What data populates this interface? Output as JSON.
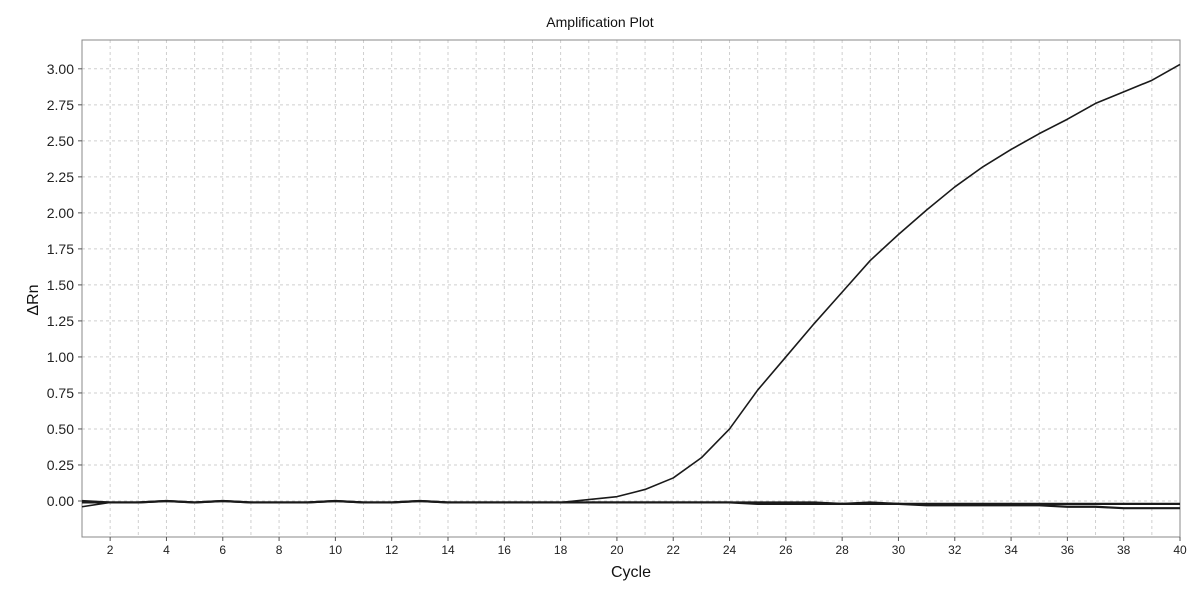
{
  "chart_data": {
    "type": "line",
    "title": "Amplification Plot",
    "xlabel": "Cycle",
    "ylabel": "ΔRn",
    "xlim": [
      1,
      40
    ],
    "ylim": [
      -0.25,
      3.2
    ],
    "x_ticks": [
      2,
      4,
      6,
      8,
      10,
      12,
      14,
      16,
      18,
      20,
      22,
      24,
      26,
      28,
      30,
      32,
      34,
      36,
      38,
      40
    ],
    "y_ticks": [
      "0.00",
      "0.25",
      "0.50",
      "0.75",
      "1.00",
      "1.25",
      "1.50",
      "1.75",
      "2.00",
      "2.25",
      "2.50",
      "2.75",
      "3.00"
    ],
    "grid": true,
    "x": [
      1,
      2,
      3,
      4,
      5,
      6,
      7,
      8,
      9,
      10,
      11,
      12,
      13,
      14,
      15,
      16,
      17,
      18,
      19,
      20,
      21,
      22,
      23,
      24,
      25,
      26,
      27,
      28,
      29,
      30,
      31,
      32,
      33,
      34,
      35,
      36,
      37,
      38,
      39,
      40
    ],
    "series": [
      {
        "values": [
          -0.04,
          -0.01,
          -0.01,
          0.0,
          -0.01,
          0.0,
          -0.01,
          -0.01,
          -0.01,
          0.0,
          -0.01,
          -0.01,
          0.0,
          -0.01,
          -0.01,
          -0.01,
          -0.01,
          -0.01,
          0.01,
          0.03,
          0.08,
          0.16,
          0.3,
          0.5,
          0.77,
          1.0,
          1.23,
          1.45,
          1.67,
          1.85,
          2.02,
          2.18,
          2.32,
          2.44,
          2.55,
          2.65,
          2.76,
          2.84,
          2.92,
          3.03
        ]
      },
      {
        "values": [
          0.0,
          -0.01,
          -0.01,
          0.0,
          -0.01,
          0.0,
          -0.01,
          -0.01,
          -0.01,
          0.0,
          -0.01,
          -0.01,
          0.0,
          -0.01,
          -0.01,
          -0.01,
          -0.01,
          -0.01,
          -0.01,
          -0.01,
          -0.01,
          -0.01,
          -0.01,
          -0.01,
          -0.01,
          -0.01,
          -0.01,
          -0.02,
          -0.02,
          -0.02,
          -0.02,
          -0.02,
          -0.02,
          -0.02,
          -0.02,
          -0.02,
          -0.02,
          -0.02,
          -0.02,
          -0.02
        ]
      },
      {
        "values": [
          -0.01,
          -0.01,
          -0.01,
          0.0,
          -0.01,
          0.0,
          -0.01,
          -0.01,
          -0.01,
          0.0,
          -0.01,
          -0.01,
          0.0,
          -0.01,
          -0.01,
          -0.01,
          -0.01,
          -0.01,
          -0.01,
          -0.01,
          -0.01,
          -0.01,
          -0.01,
          -0.01,
          -0.02,
          -0.02,
          -0.02,
          -0.02,
          -0.01,
          -0.02,
          -0.03,
          -0.03,
          -0.03,
          -0.03,
          -0.03,
          -0.04,
          -0.04,
          -0.05,
          -0.05,
          -0.05
        ]
      }
    ]
  }
}
